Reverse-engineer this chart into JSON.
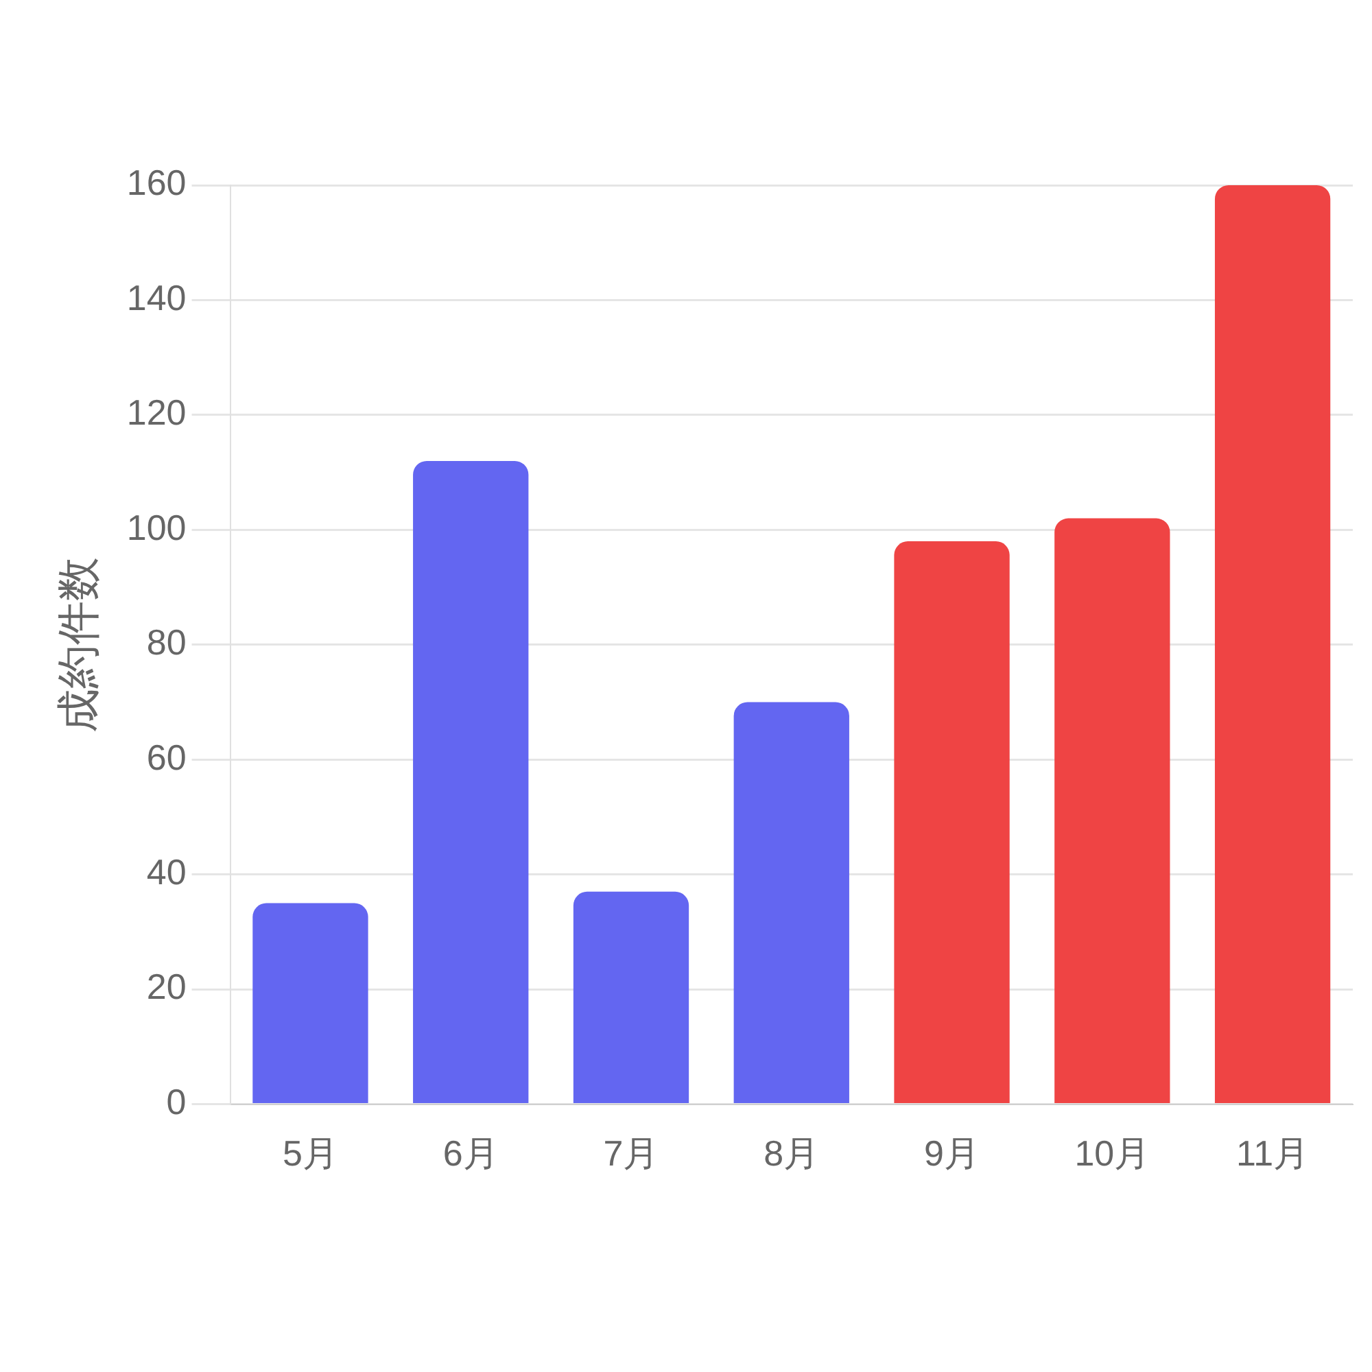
{
  "chart_data": {
    "type": "bar",
    "ylabel": "成約件数",
    "categories": [
      "5月",
      "6月",
      "7月",
      "8月",
      "9月",
      "10月",
      "11月"
    ],
    "values": [
      35,
      112,
      37,
      70,
      98,
      102,
      160
    ],
    "colors": [
      "#6366f1",
      "#6366f1",
      "#6366f1",
      "#6366f1",
      "#ef4444",
      "#ef4444",
      "#ef4444"
    ],
    "ylim": [
      0,
      160
    ],
    "yticks": [
      0,
      20,
      40,
      60,
      80,
      100,
      120,
      140,
      160
    ],
    "grid": "y",
    "legend": false
  }
}
